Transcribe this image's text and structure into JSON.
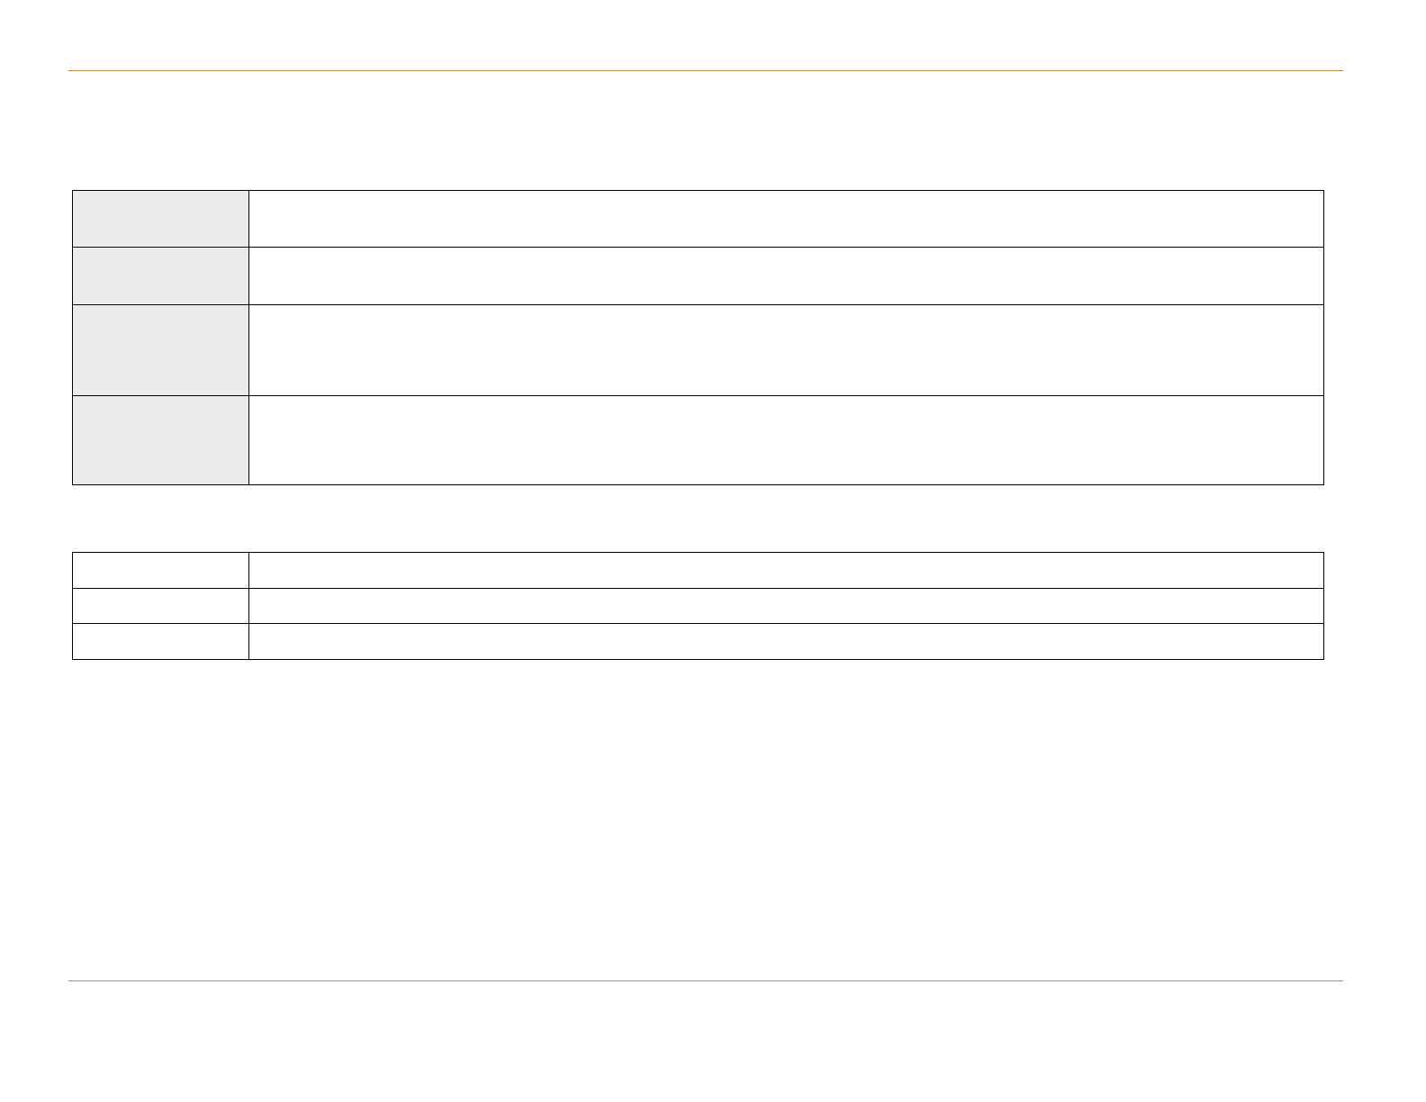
{
  "colors": {
    "accent_rule": "#c8894a",
    "label_fill": "#ebebeb",
    "border": "#000000"
  },
  "table1": {
    "rows": [
      {
        "label": "",
        "value": ""
      },
      {
        "label": "",
        "value": ""
      },
      {
        "label": "",
        "value": ""
      },
      {
        "label": "",
        "value": ""
      }
    ]
  },
  "table2": {
    "rows": [
      {
        "label": "",
        "value": ""
      },
      {
        "label": "",
        "value": ""
      },
      {
        "label": "",
        "value": ""
      }
    ]
  }
}
